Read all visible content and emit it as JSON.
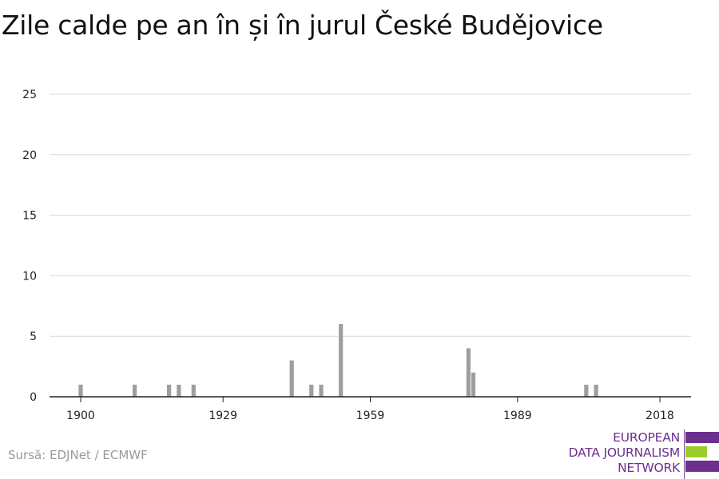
{
  "title": "Zile calde pe an în și în jurul České Budějovice",
  "source": "Sursă: EDJNet / ECMWF",
  "logo": {
    "lines": [
      "EUROPEAN",
      "DATA JOURNALISM",
      "NETWORK"
    ],
    "colors": {
      "purple": "#6b2f8e",
      "green": "#9ccc2c"
    }
  },
  "colors": {
    "bar": "#9e9e9e",
    "grid": "#d9d9d9",
    "axis": "#222222"
  },
  "chart_data": {
    "type": "bar",
    "title": "Zile calde pe an în și în jurul České Budějovice",
    "xlabel": "",
    "ylabel": "",
    "x_tick_labels": [
      "1900",
      "1929",
      "1959",
      "1989",
      "2018"
    ],
    "y_tick_labels": [
      "0",
      "5",
      "10",
      "15",
      "20",
      "25"
    ],
    "ylim": [
      0,
      25
    ],
    "xlim": [
      1900,
      2018
    ],
    "grid": true,
    "x": [
      1900,
      1901,
      1902,
      1903,
      1904,
      1905,
      1906,
      1907,
      1908,
      1909,
      1910,
      1911,
      1912,
      1913,
      1914,
      1915,
      1916,
      1917,
      1918,
      1919,
      1920,
      1921,
      1922,
      1923,
      1924,
      1925,
      1926,
      1927,
      1928,
      1929,
      1930,
      1931,
      1932,
      1933,
      1934,
      1935,
      1936,
      1937,
      1938,
      1939,
      1940,
      1941,
      1942,
      1943,
      1944,
      1945,
      1946,
      1947,
      1948,
      1949,
      1950,
      1951,
      1952,
      1953,
      1954,
      1955,
      1956,
      1957,
      1958,
      1959,
      1960,
      1961,
      1962,
      1963,
      1964,
      1965,
      1966,
      1967,
      1968,
      1969,
      1970,
      1971,
      1972,
      1973,
      1974,
      1975,
      1976,
      1977,
      1978,
      1979,
      1980,
      1981,
      1982,
      1983,
      1984,
      1985,
      1986,
      1987,
      1988,
      1989,
      1990,
      1991,
      1992,
      1993,
      1994,
      1995,
      1996,
      1997,
      1998,
      1999,
      2000,
      2001,
      2002,
      2003,
      2004,
      2005,
      2006,
      2007,
      2008,
      2009,
      2010,
      2011,
      2012,
      2013,
      2014,
      2015,
      2016,
      2017,
      2018,
      2019
    ],
    "values": [
      1,
      0,
      0,
      0,
      0,
      0,
      0,
      0,
      0,
      0,
      0,
      1,
      0,
      0,
      0,
      0,
      0,
      0,
      1,
      0,
      1,
      0,
      0,
      1,
      0,
      0,
      0,
      0,
      0,
      0,
      0,
      0,
      0,
      0,
      0,
      0,
      0,
      0,
      0,
      0,
      0,
      0,
      0,
      3,
      0,
      0,
      0,
      1,
      0,
      1,
      0,
      0,
      0,
      6,
      0,
      0,
      0,
      0,
      0,
      0,
      0,
      0,
      0,
      0,
      0,
      0,
      0,
      0,
      0,
      0,
      0,
      0,
      0,
      0,
      0,
      0,
      0,
      0,
      0,
      4,
      2,
      0,
      0,
      0,
      0,
      0,
      0,
      0,
      0,
      0,
      0,
      0,
      0,
      0,
      0,
      0,
      0,
      0,
      0,
      0,
      0,
      0,
      0,
      1,
      0,
      1,
      0,
      0,
      0,
      0,
      0,
      0,
      0,
      0,
      0,
      0,
      0,
      0,
      0,
      0
    ]
  }
}
